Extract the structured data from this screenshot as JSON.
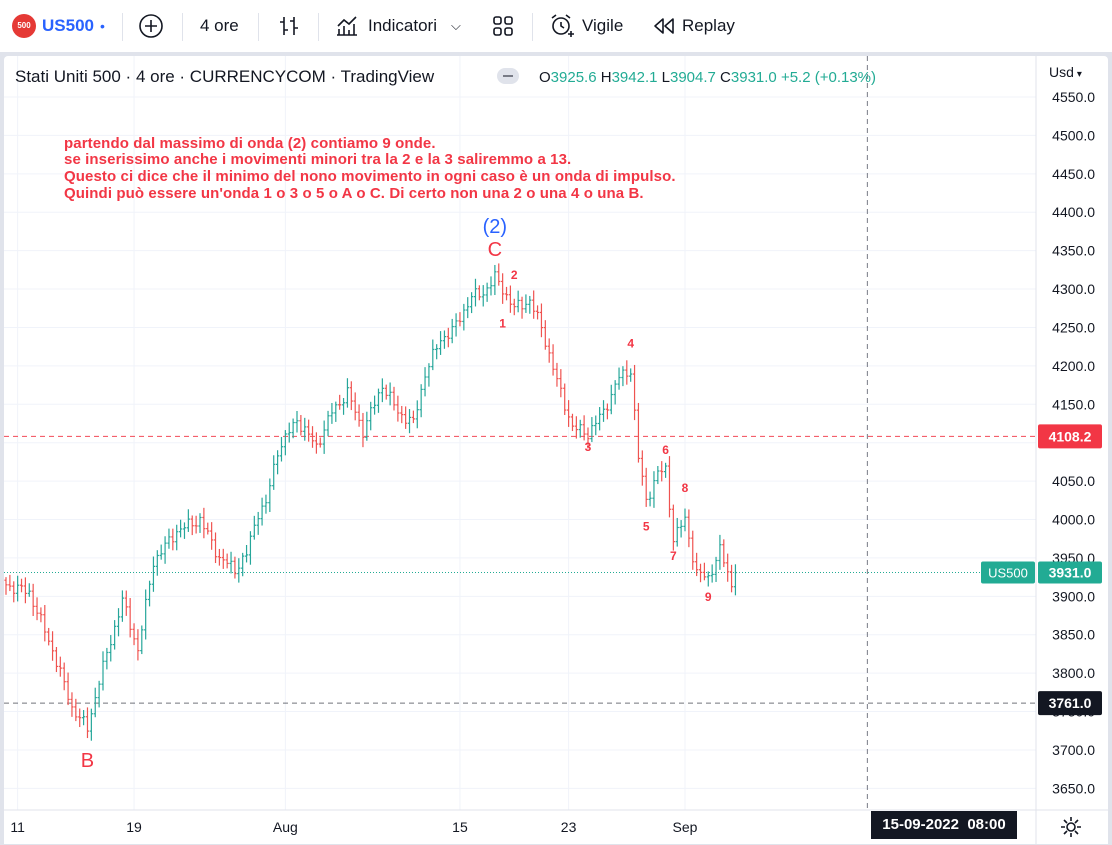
{
  "toolbar": {
    "logo_text": "500",
    "symbol": "US500",
    "interval": "4 ore",
    "indicators_label": "Indicatori",
    "alert_label": "Vigile",
    "replay_label": "Replay"
  },
  "legend": {
    "title": "Stati Uniti 500 · 4 ore · CURRENCYCOM · TradingView",
    "o_label": "O",
    "o_value": "3925.6",
    "h_label": "H",
    "h_value": "3942.1",
    "l_label": "L",
    "l_value": "3904.7",
    "c_label": "C",
    "c_value": "3931.0",
    "change": "+5.2 (+0.13%)"
  },
  "currency_label": "Usd",
  "annotation": [
    "partendo dal massimo di onda (2) contiamo 9 onde.",
    "se inserissimo anche i movimenti minori tra la 2 e la 3 saliremmo a 13.",
    "Questo ci dice che il minimo del nono movimento  in ogni caso è un onda di impulso.",
    "Quindi può essere un'onda 1 o 3 o 5 o A o C. Di certo non una 2 o una 4 o una B."
  ],
  "colors": {
    "up": "#26a69a",
    "down": "#ef5350",
    "annotation": "#f23645",
    "wave2_label": "#2962ff",
    "price_tag": "#22ab94",
    "hline_red": "#f23645",
    "hline_black": "#131722"
  },
  "chart_data": {
    "type": "candlestick",
    "symbol": "US500",
    "y_ticks": [
      4550,
      4500,
      4450,
      4400,
      4350,
      4300,
      4250,
      4200,
      4150,
      4100,
      4050,
      4000,
      3950,
      3900,
      3850,
      3800,
      3750,
      3700,
      3650
    ],
    "y_tick_labels": [
      "4550.0",
      "4500.0",
      "4450.0",
      "4400.0",
      "4350.0",
      "4300.0",
      "4250.0",
      "4200.0",
      "4150.0",
      "4100.0",
      "4050.0",
      "4000.0",
      "3950.0",
      "3900.0",
      "3850.0",
      "3800.0",
      "3750.0",
      "3700.0",
      "3650.0"
    ],
    "x_ticks": [
      {
        "bar": 3,
        "label": "11"
      },
      {
        "bar": 33,
        "label": "19"
      },
      {
        "bar": 72,
        "label": "Aug"
      },
      {
        "bar": 117,
        "label": "15"
      },
      {
        "bar": 145,
        "label": "23"
      },
      {
        "bar": 175,
        "label": "Sep"
      }
    ],
    "time_label": "15-09-2022",
    "time_value": "08:00",
    "last_price": {
      "value": 3931.0,
      "label": "3931.0",
      "symbol": "US500"
    },
    "horizontal_lines": [
      {
        "value": 4108.2,
        "label": "4108.2",
        "color": "red"
      },
      {
        "value": 3761.0,
        "label": "3761.0",
        "color": "black"
      }
    ],
    "vertical_line_bar": 222,
    "waypoints": [
      [
        0,
        3915
      ],
      [
        6,
        3905
      ],
      [
        12,
        3830
      ],
      [
        17,
        3755
      ],
      [
        21,
        3728
      ],
      [
        24,
        3790
      ],
      [
        30,
        3895
      ],
      [
        34,
        3830
      ],
      [
        38,
        3945
      ],
      [
        44,
        3985
      ],
      [
        50,
        4000
      ],
      [
        55,
        3950
      ],
      [
        59,
        3935
      ],
      [
        62,
        3955
      ],
      [
        65,
        4010
      ],
      [
        67,
        4020
      ],
      [
        70,
        4090
      ],
      [
        75,
        4130
      ],
      [
        80,
        4095
      ],
      [
        84,
        4140
      ],
      [
        88,
        4165
      ],
      [
        92,
        4115
      ],
      [
        97,
        4175
      ],
      [
        101,
        4140
      ],
      [
        105,
        4125
      ],
      [
        108,
        4190
      ],
      [
        112,
        4235
      ],
      [
        115,
        4245
      ],
      [
        120,
        4290
      ],
      [
        123,
        4295
      ],
      [
        126,
        4315
      ],
      [
        128,
        4300
      ],
      [
        131,
        4275
      ],
      [
        135,
        4285
      ],
      [
        138,
        4250
      ],
      [
        142,
        4180
      ],
      [
        146,
        4120
      ],
      [
        150,
        4112
      ],
      [
        154,
        4140
      ],
      [
        158,
        4185
      ],
      [
        161,
        4195
      ],
      [
        163,
        4080
      ],
      [
        165,
        4025
      ],
      [
        168,
        4060
      ],
      [
        170,
        4065
      ],
      [
        172,
        3975
      ],
      [
        175,
        4000
      ],
      [
        178,
        3930
      ],
      [
        181,
        3924
      ],
      [
        184,
        3960
      ],
      [
        187,
        3915
      ],
      [
        188,
        3931
      ]
    ],
    "wave_labels": [
      {
        "text": "(2)",
        "bar": 126,
        "price": 4373,
        "color": "blue"
      },
      {
        "text": "C",
        "bar": 126,
        "price": 4343,
        "color": "red"
      },
      {
        "text": "B",
        "bar": 21,
        "price": 3678,
        "color": "red"
      },
      {
        "text": "1",
        "bar": 128,
        "price": 4250,
        "color": "red",
        "small": true
      },
      {
        "text": "2",
        "bar": 131,
        "price": 4313,
        "color": "red",
        "small": true
      },
      {
        "text": "3",
        "bar": 150,
        "price": 4089,
        "color": "red",
        "small": true
      },
      {
        "text": "4",
        "bar": 161,
        "price": 4224,
        "color": "red",
        "small": true
      },
      {
        "text": "5",
        "bar": 165,
        "price": 3986,
        "color": "red",
        "small": true
      },
      {
        "text": "6",
        "bar": 170,
        "price": 4085,
        "color": "red",
        "small": true
      },
      {
        "text": "7",
        "bar": 172,
        "price": 3947,
        "color": "red",
        "small": true
      },
      {
        "text": "8",
        "bar": 175,
        "price": 4036,
        "color": "red",
        "small": true
      },
      {
        "text": "9",
        "bar": 181,
        "price": 3894,
        "color": "red",
        "small": true
      }
    ]
  }
}
